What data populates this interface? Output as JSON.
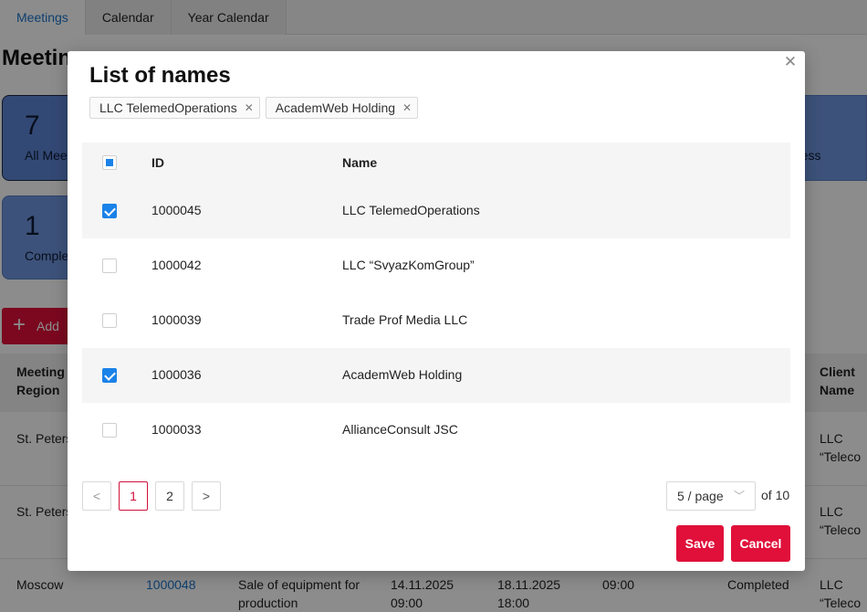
{
  "background": {
    "tabs": [
      {
        "label": "Meetings",
        "active": true
      },
      {
        "label": "Calendar",
        "active": false
      },
      {
        "label": "Year Calendar",
        "active": false
      }
    ],
    "page_title": "Meetin",
    "cards": [
      {
        "number": "7",
        "label": "All Mee"
      },
      {
        "number": "1",
        "label": "Comple"
      }
    ],
    "card_right_label": "ress",
    "add_button": "Add",
    "columns": {
      "region": [
        "Meeting",
        "Region"
      ],
      "client": [
        "Client",
        "Name"
      ]
    },
    "rows": [
      {
        "region": "St. Peters",
        "client": [
          "LLC",
          "“Teleco"
        ]
      },
      {
        "region": "St. Peters",
        "client": [
          "LLC",
          "“Teleco"
        ]
      },
      {
        "region": "Moscow",
        "id": "1000048",
        "subject": [
          "Sale of equipment for",
          "production"
        ],
        "start": [
          "14.11.2025",
          "09:00"
        ],
        "end": [
          "18.11.2025",
          "18:00"
        ],
        "time": "09:00",
        "status": "Completed",
        "client": [
          "LLC",
          "“Teleco"
        ]
      }
    ]
  },
  "modal": {
    "title": "List of names",
    "close_icon": "close-icon",
    "chips": [
      {
        "label": "LLC TelemedOperations"
      },
      {
        "label": "AcademWeb Holding"
      }
    ],
    "table": {
      "headers": {
        "id": "ID",
        "name": "Name"
      },
      "header_checkbox": "indeterminate",
      "rows": [
        {
          "id": "1000045",
          "name": "LLC TelemedOperations",
          "checked": true
        },
        {
          "id": "1000042",
          "name": "LLC “SvyazKomGroup”",
          "checked": false
        },
        {
          "id": "1000039",
          "name": "Trade Prof Media LLC",
          "checked": false
        },
        {
          "id": "1000036",
          "name": "AcademWeb Holding",
          "checked": true
        },
        {
          "id": "1000033",
          "name": "AllianceConsult JSC",
          "checked": false
        }
      ]
    },
    "pagination": {
      "prev": "<",
      "pages": [
        "1",
        "2"
      ],
      "current": "1",
      "next": ">",
      "page_size": "5 / page",
      "total": "of 10"
    },
    "buttons": {
      "save": "Save",
      "cancel": "Cancel"
    }
  }
}
